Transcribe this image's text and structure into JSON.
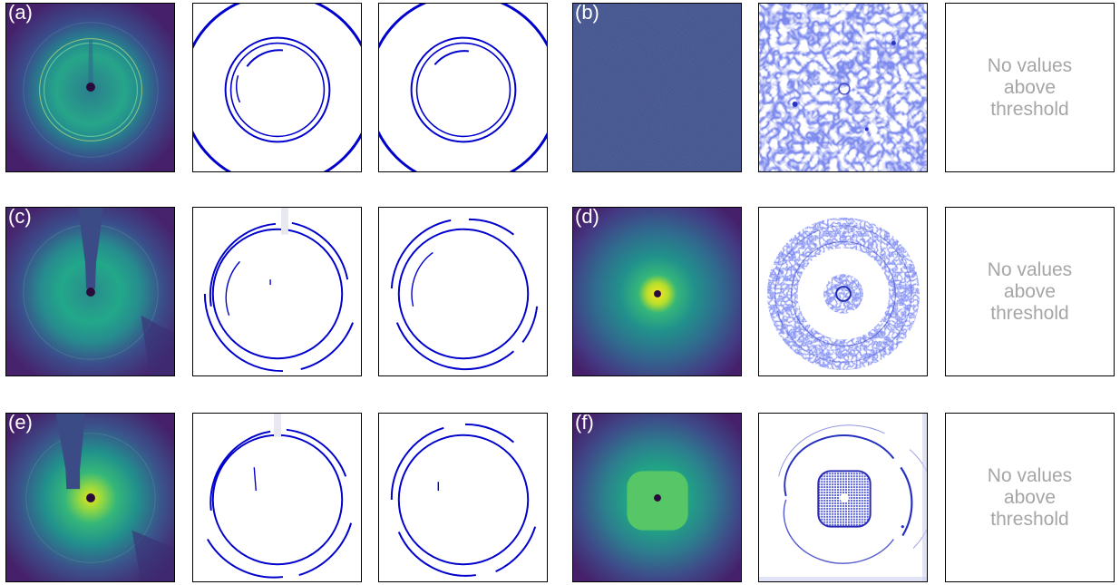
{
  "panel_labels": {
    "a": "(a)",
    "b": "(b)",
    "c": "(c)",
    "d": "(d)",
    "e": "(e)",
    "f": "(f)"
  },
  "no_values_text": "No values\nabove\nthreshold",
  "colors": {
    "viridis_dark": "#440154",
    "viridis_mid": "#3a4d8c",
    "viridis_teal": "#26a08a",
    "viridis_green": "#4cc26c",
    "viridis_yellow": "#fde725",
    "ring_blue": "#0000cc",
    "noise_blue": "#3b4a8c"
  }
}
